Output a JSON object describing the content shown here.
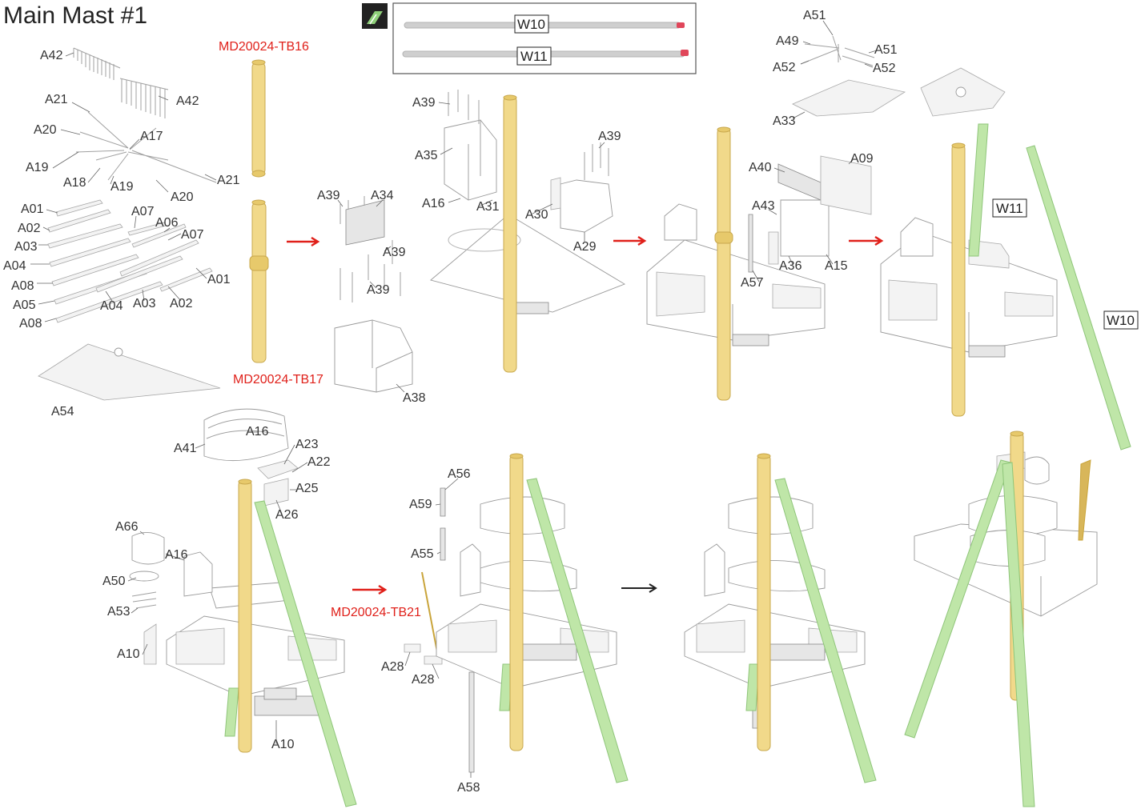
{
  "title": "Main Mast #1",
  "callouts": {
    "tb16": "MD20024-TB16",
    "tb17": "MD20024-TB17",
    "tb21": "MD20024-TB21"
  },
  "rods": {
    "w10": "W10",
    "w11": "W11"
  },
  "labels": {
    "s1": [
      "A42",
      "A42",
      "A21",
      "A20",
      "A17",
      "A19",
      "A18",
      "A19",
      "A21",
      "A20",
      "A01",
      "A02",
      "A07",
      "A06",
      "A07",
      "A03",
      "A04",
      "A08",
      "A05",
      "A08",
      "A04",
      "A03",
      "A02",
      "A01",
      "A54"
    ],
    "s2": [
      "A39",
      "A34",
      "A39",
      "A39",
      "A38"
    ],
    "s3": [
      "A39",
      "A35",
      "A39",
      "A16",
      "A31",
      "A30",
      "A29"
    ],
    "s4": [
      "A51",
      "A49",
      "A51",
      "A52",
      "A52",
      "A33",
      "A40",
      "A09",
      "A43",
      "A36",
      "A15",
      "A57"
    ],
    "s5": [
      "W11",
      "W10"
    ],
    "s6": [
      "A16",
      "A41",
      "A23",
      "A22",
      "A25",
      "A26",
      "A66",
      "A16",
      "A50",
      "A53",
      "A10",
      "A10"
    ],
    "s7": [
      "A56",
      "A59",
      "A55",
      "A28",
      "A28",
      "A58"
    ]
  },
  "colors": {
    "mast": "#f1d98a",
    "boom": "#bfe6a8",
    "arrow": "#e0201a",
    "callout": "#e0201a"
  },
  "icons": {
    "rod_icon": "rod-parts-icon"
  }
}
